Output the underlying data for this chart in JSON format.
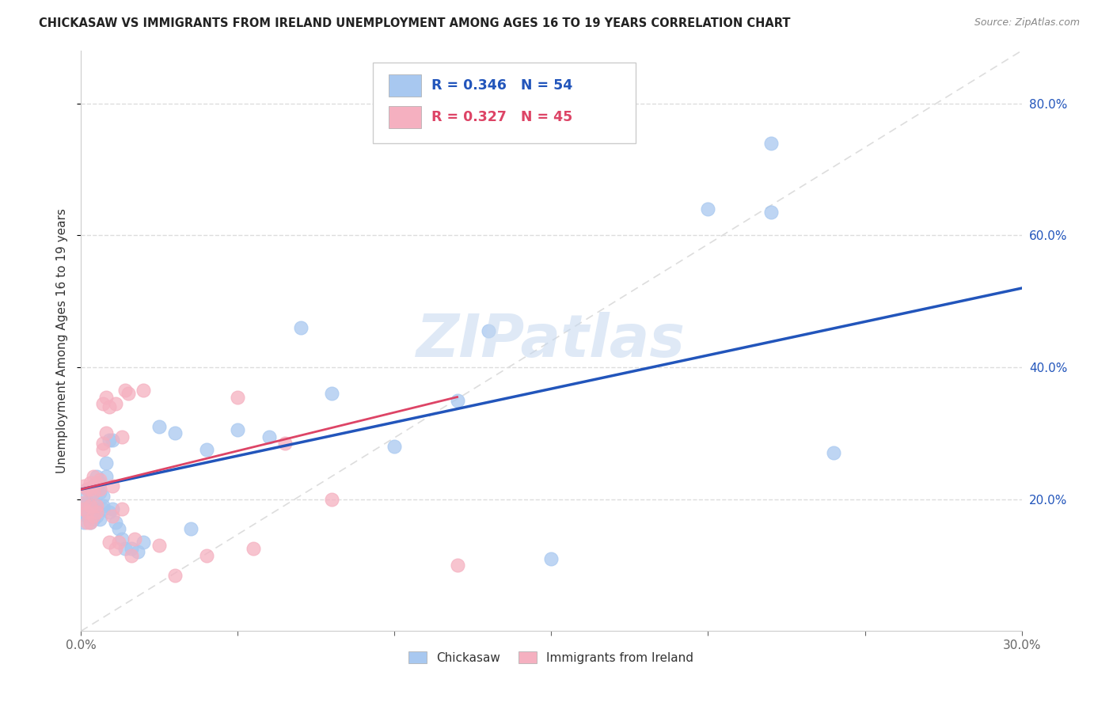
{
  "title": "CHICKASAW VS IMMIGRANTS FROM IRELAND UNEMPLOYMENT AMONG AGES 16 TO 19 YEARS CORRELATION CHART",
  "source": "Source: ZipAtlas.com",
  "ylabel": "Unemployment Among Ages 16 to 19 years",
  "xlim": [
    0.0,
    0.3
  ],
  "ylim": [
    0.0,
    0.88
  ],
  "ytick_vals": [
    0.2,
    0.4,
    0.6,
    0.8
  ],
  "ytick_labels": [
    "20.0%",
    "40.0%",
    "60.0%",
    "80.0%"
  ],
  "xtick_vals": [
    0.0,
    0.05,
    0.1,
    0.15,
    0.2,
    0.25,
    0.3
  ],
  "xtick_labels": [
    "0.0%",
    "",
    "",
    "",
    "",
    "",
    "30.0%"
  ],
  "blue_color": "#a8c8f0",
  "pink_color": "#f5b0c0",
  "blue_line_color": "#2255bb",
  "pink_line_color": "#dd4466",
  "ref_line_color": "#dddddd",
  "watermark": "ZIPatlas",
  "blue_line_x0": 0.0,
  "blue_line_y0": 0.215,
  "blue_line_x1": 0.3,
  "blue_line_y1": 0.52,
  "pink_line_x0": 0.0,
  "pink_line_x1": 0.12,
  "pink_line_y0": 0.215,
  "pink_line_y1": 0.355,
  "chickasaw_x": [
    0.001,
    0.001,
    0.001,
    0.002,
    0.002,
    0.002,
    0.002,
    0.003,
    0.003,
    0.003,
    0.003,
    0.004,
    0.004,
    0.004,
    0.004,
    0.005,
    0.005,
    0.005,
    0.005,
    0.006,
    0.006,
    0.006,
    0.007,
    0.007,
    0.007,
    0.008,
    0.008,
    0.009,
    0.009,
    0.01,
    0.01,
    0.011,
    0.012,
    0.013,
    0.014,
    0.016,
    0.018,
    0.02,
    0.025,
    0.03,
    0.035,
    0.04,
    0.05,
    0.06,
    0.07,
    0.08,
    0.1,
    0.12,
    0.13,
    0.15,
    0.2,
    0.22,
    0.22,
    0.24
  ],
  "chickasaw_y": [
    0.18,
    0.2,
    0.165,
    0.185,
    0.175,
    0.195,
    0.215,
    0.185,
    0.195,
    0.165,
    0.215,
    0.18,
    0.195,
    0.22,
    0.17,
    0.185,
    0.215,
    0.175,
    0.235,
    0.21,
    0.225,
    0.17,
    0.185,
    0.205,
    0.19,
    0.235,
    0.255,
    0.29,
    0.18,
    0.29,
    0.185,
    0.165,
    0.155,
    0.14,
    0.125,
    0.125,
    0.12,
    0.135,
    0.31,
    0.3,
    0.155,
    0.275,
    0.305,
    0.295,
    0.46,
    0.36,
    0.28,
    0.35,
    0.455,
    0.11,
    0.64,
    0.74,
    0.635,
    0.27
  ],
  "ireland_x": [
    0.001,
    0.001,
    0.001,
    0.002,
    0.002,
    0.002,
    0.003,
    0.003,
    0.003,
    0.003,
    0.004,
    0.004,
    0.004,
    0.005,
    0.005,
    0.005,
    0.006,
    0.006,
    0.007,
    0.007,
    0.007,
    0.008,
    0.008,
    0.009,
    0.009,
    0.01,
    0.01,
    0.011,
    0.011,
    0.012,
    0.013,
    0.013,
    0.014,
    0.015,
    0.016,
    0.017,
    0.02,
    0.025,
    0.03,
    0.04,
    0.05,
    0.055,
    0.065,
    0.08,
    0.12
  ],
  "ireland_y": [
    0.185,
    0.195,
    0.22,
    0.18,
    0.215,
    0.165,
    0.19,
    0.225,
    0.165,
    0.215,
    0.175,
    0.21,
    0.235,
    0.19,
    0.225,
    0.18,
    0.215,
    0.23,
    0.275,
    0.345,
    0.285,
    0.3,
    0.355,
    0.34,
    0.135,
    0.22,
    0.175,
    0.125,
    0.345,
    0.135,
    0.185,
    0.295,
    0.365,
    0.36,
    0.115,
    0.14,
    0.365,
    0.13,
    0.085,
    0.115,
    0.355,
    0.125,
    0.285,
    0.2,
    0.1
  ]
}
